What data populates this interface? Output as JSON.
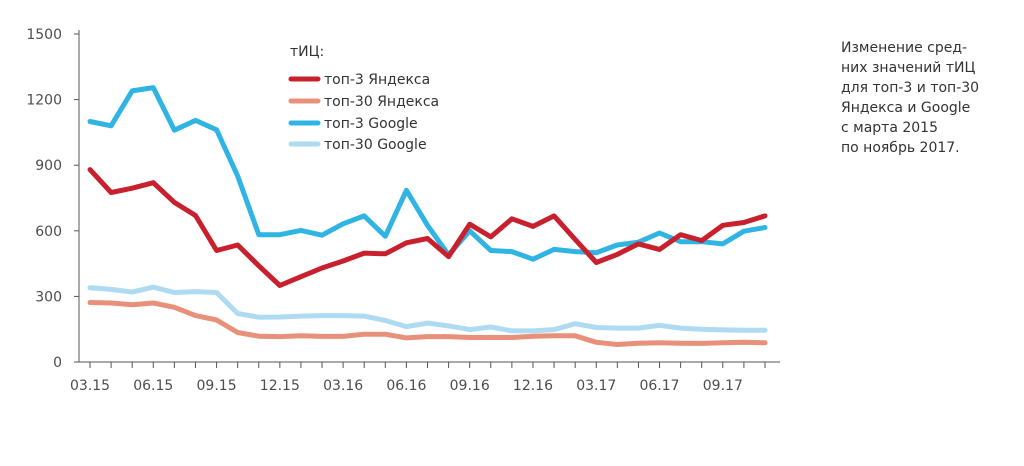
{
  "chart_data": {
    "type": "line",
    "x_tick_labels": [
      "03.15",
      "06.15",
      "09.15",
      "12.15",
      "03.16",
      "06.16",
      "09.16",
      "12.16",
      "03.17",
      "06.17",
      "09.17"
    ],
    "ylim": [
      0,
      1500
    ],
    "y_ticks": [
      "0",
      "300",
      "600",
      "900",
      "1200",
      "1500"
    ],
    "legend_title": "тИЦ:",
    "caption": "Изменение сред-\nних значений тИЦ\nдля топ-3 и топ-30\nЯндекса и Google\nс марта 2015\nпо ноябрь 2017.",
    "series": [
      {
        "name": "топ-3 Яндекса",
        "color": "#c8202d",
        "values": [
          880,
          775,
          795,
          820,
          730,
          670,
          510,
          535,
          440,
          350,
          390,
          430,
          462,
          498,
          495,
          545,
          565,
          482,
          630,
          572,
          655,
          620,
          668,
          560,
          455,
          492,
          540,
          515,
          582,
          555,
          625,
          638,
          668
        ]
      },
      {
        "name": "топ-30 Яндекса",
        "color": "#e8907a",
        "values": [
          272,
          270,
          262,
          270,
          250,
          212,
          192,
          135,
          118,
          116,
          120,
          117,
          117,
          127,
          127,
          110,
          116,
          116,
          112,
          112,
          112,
          118,
          120,
          120,
          90,
          80,
          86,
          88,
          86,
          85,
          88,
          90,
          88
        ]
      },
      {
        "name": "топ-3 Google",
        "color": "#2fb4e3",
        "values": [
          1100,
          1080,
          1240,
          1255,
          1060,
          1105,
          1062,
          850,
          582,
          582,
          602,
          580,
          632,
          668,
          575,
          785,
          625,
          490,
          600,
          510,
          505,
          470,
          515,
          505,
          500,
          535,
          548,
          590,
          550,
          550,
          540,
          598,
          615
        ]
      },
      {
        "name": "топ-30 Google",
        "color": "#aedbf2",
        "values": [
          340,
          332,
          320,
          342,
          318,
          322,
          318,
          222,
          205,
          206,
          210,
          212,
          212,
          210,
          190,
          162,
          178,
          165,
          148,
          160,
          142,
          142,
          148,
          175,
          158,
          155,
          155,
          168,
          155,
          150,
          147,
          145,
          145
        ]
      }
    ]
  }
}
